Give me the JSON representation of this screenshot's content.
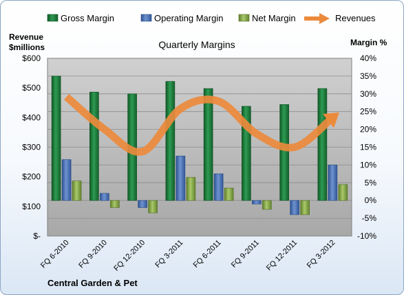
{
  "chart_data": {
    "type": "bar",
    "title": "Quarterly Margins",
    "company": "Central Garden & Pet",
    "categories": [
      "FQ 6-2010",
      "FQ 9-2010",
      "FQ 12-2010",
      "FQ 3-2011",
      "FQ 6-2011",
      "FQ 9-2011",
      "FQ 12-2011",
      "FQ 3-2012"
    ],
    "left_axis": {
      "label_line1": "Revenue",
      "label_line2": "$millions",
      "range": [
        0,
        600
      ],
      "tick_labels": [
        "$-",
        "$100",
        "$200",
        "$300",
        "$400",
        "$500",
        "$600"
      ]
    },
    "right_axis": {
      "label": "Margin %",
      "range": [
        -10,
        40
      ],
      "tick_labels": [
        "-10%",
        "-5%",
        "0%",
        "5%",
        "10%",
        "15%",
        "20%",
        "25%",
        "30%",
        "35%",
        "40%"
      ]
    },
    "series": [
      {
        "name": "Gross Margin",
        "type": "bar",
        "axis": "right",
        "color": "#1e7b3e",
        "values": [
          35.0,
          30.5,
          30.0,
          33.5,
          31.5,
          26.5,
          27.0,
          31.5
        ]
      },
      {
        "name": "Operating Margin",
        "type": "bar",
        "axis": "right",
        "color": "#4a72b4",
        "values": [
          11.5,
          2.0,
          -2.0,
          12.5,
          7.5,
          -1.0,
          -4.0,
          10.0
        ]
      },
      {
        "name": "Net Margin",
        "type": "bar",
        "axis": "right",
        "color": "#8cad4c",
        "values": [
          5.5,
          -2.0,
          -3.5,
          6.5,
          3.5,
          -2.5,
          -4.0,
          4.5
        ]
      },
      {
        "name": "Revenues",
        "type": "line",
        "axis": "left",
        "color": "#ec8a3c",
        "values": [
          470,
          360,
          285,
          430,
          455,
          345,
          300,
          400
        ]
      }
    ],
    "grid": true,
    "legend_position": "top"
  }
}
